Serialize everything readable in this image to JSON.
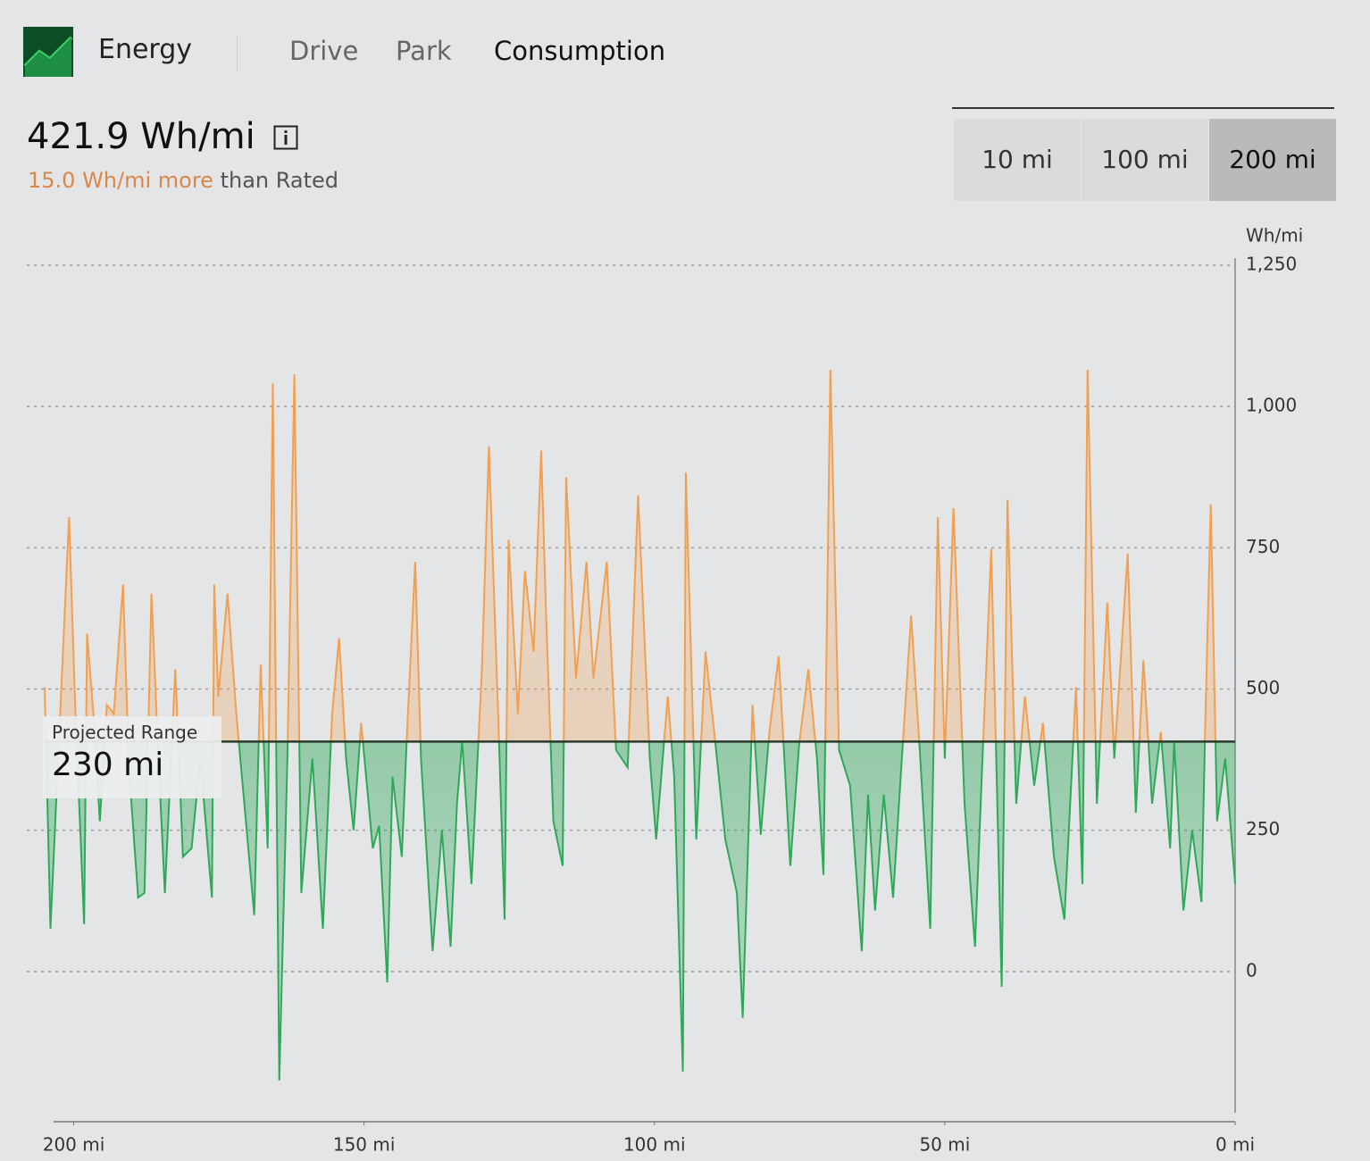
{
  "header": {
    "title": "Energy",
    "tabs": [
      "Drive",
      "Park",
      "Consumption"
    ],
    "active_tab": 2
  },
  "summary": {
    "value": "421.9 Wh/mi",
    "difference": "15.0 Wh/mi more",
    "comparison": "than Rated"
  },
  "range_options": [
    "10 mi",
    "100 mi",
    "200 mi"
  ],
  "selected_range": 2,
  "projected_range": {
    "label": "Projected Range",
    "value": "230 mi"
  },
  "chart_data": {
    "type": "area",
    "y_unit": "Wh/mi",
    "x": [
      205.0,
      204.0,
      200.8,
      199.7,
      198.2,
      197.7,
      196.6,
      195.5,
      194.3,
      193.1,
      191.5,
      190.5,
      188.9,
      187.8,
      186.6,
      185.4,
      184.3,
      182.5,
      181.2,
      179.7,
      178.2,
      176.2,
      175.8,
      175.1,
      173.5,
      172.0,
      168.9,
      167.8,
      166.6,
      165.7,
      164.6,
      163.2,
      162.0,
      160.8,
      158.9,
      157.1,
      155.5,
      154.3,
      153.1,
      151.8,
      150.5,
      148.5,
      147.4,
      146.0,
      145.1,
      143.5,
      142.6,
      141.2,
      140.2,
      138.2,
      136.6,
      135.1,
      134.0,
      133.1,
      131.5,
      129.7,
      128.5,
      126.9,
      125.8,
      125.1,
      123.5,
      122.3,
      120.8,
      119.5,
      118.6,
      117.4,
      115.8,
      115.2,
      113.5,
      111.7,
      110.5,
      108.2,
      106.6,
      104.6,
      102.8,
      100.8,
      99.7,
      97.7,
      96.6,
      95.1,
      94.6,
      92.8,
      91.2,
      89.7,
      87.8,
      85.8,
      84.8,
      83.1,
      81.7,
      80.2,
      78.6,
      76.6,
      75.1,
      73.5,
      72.0,
      70.9,
      69.7,
      68.2,
      66.3,
      64.3,
      63.2,
      62.0,
      60.5,
      58.9,
      57.4,
      55.8,
      54.3,
      52.5,
      51.2,
      50.0,
      48.5,
      46.6,
      44.8,
      43.5,
      42.0,
      40.2,
      39.2,
      37.7,
      36.2,
      34.6,
      33.1,
      31.2,
      29.4,
      27.4,
      26.3,
      25.4,
      23.8,
      22.0,
      20.8,
      18.5,
      17.1,
      15.8,
      14.3,
      12.8,
      11.2,
      10.5,
      8.9,
      7.4,
      5.8,
      5.1,
      4.2,
      3.1,
      1.7,
      0.0
    ],
    "values": [
      503,
      76,
      804,
      456,
      84,
      598,
      456,
      266,
      472,
      456,
      685,
      361,
      131,
      139,
      669,
      377,
      139,
      535,
      203,
      218,
      377,
      131,
      685,
      487,
      669,
      456,
      100,
      543,
      218,
      1041,
      -193,
      377,
      1057,
      139,
      377,
      76,
      456,
      590,
      377,
      250,
      440,
      218,
      258,
      -19,
      345,
      203,
      424,
      725,
      377,
      36,
      250,
      44,
      297,
      408,
      155,
      535,
      930,
      456,
      92,
      764,
      456,
      709,
      566,
      922,
      614,
      266,
      187,
      875,
      519,
      725,
      519,
      725,
      392,
      361,
      843,
      377,
      234,
      487,
      345,
      -177,
      883,
      234,
      566,
      424,
      234,
      139,
      -82,
      472,
      242,
      424,
      558,
      187,
      400,
      535,
      377,
      171,
      1065,
      392,
      329,
      36,
      313,
      108,
      313,
      131,
      377,
      630,
      392,
      76,
      804,
      377,
      820,
      297,
      44,
      377,
      748,
      -27,
      835,
      297,
      487,
      329,
      440,
      203,
      92,
      503,
      155,
      1065,
      297,
      653,
      377,
      740,
      281,
      551,
      297,
      424,
      218,
      408,
      108,
      250,
      123,
      456,
      827,
      266,
      377,
      155
    ],
    "reference_value": 407,
    "color_above": "#f0a050",
    "color_below": "#2fa85a",
    "xlim": [
      205,
      0
    ],
    "ylim": [
      -250,
      1250
    ],
    "xticks": [
      {
        "value": 200,
        "label": "200 mi"
      },
      {
        "value": 150,
        "label": "150 mi"
      },
      {
        "value": 100,
        "label": "100 mi"
      },
      {
        "value": 50,
        "label": "50 mi"
      },
      {
        "value": 0,
        "label": "0 mi"
      }
    ],
    "yticks": [
      0,
      250,
      500,
      750,
      {
        "value": 1000,
        "label": "1,000"
      },
      {
        "value": 1250,
        "label": "1,250"
      }
    ],
    "grid": true
  }
}
